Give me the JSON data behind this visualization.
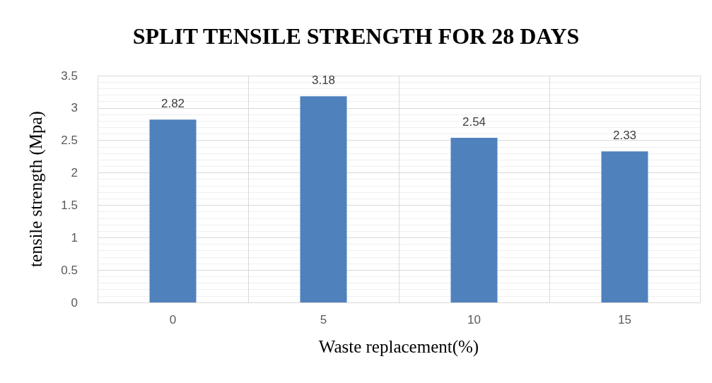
{
  "chart_data": {
    "type": "bar",
    "title": "SPLIT TENSILE STRENGTH FOR 28 DAYS",
    "xlabel": "Waste replacement(%)",
    "ylabel": "tensile strength (Mpa)",
    "categories": [
      "0",
      "5",
      "10",
      "15"
    ],
    "values": [
      2.82,
      3.18,
      2.54,
      2.33
    ],
    "color": "#4f81bd",
    "ylim": [
      0,
      3.5
    ],
    "yticks": [
      0,
      0.5,
      1,
      1.5,
      2,
      2.5,
      3,
      3.5
    ],
    "grid": true,
    "data_labels": true
  }
}
